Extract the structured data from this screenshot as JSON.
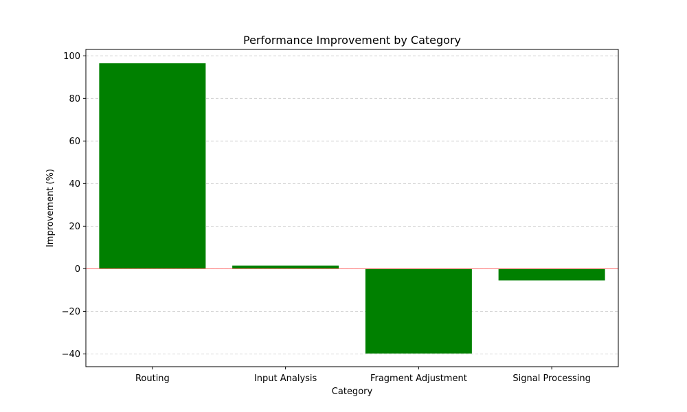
{
  "chart_data": {
    "type": "bar",
    "title": "Performance Improvement by Category",
    "xlabel": "Category",
    "ylabel": "Improvement (%)",
    "categories": [
      "Routing",
      "Input Analysis",
      "Fragment Adjustment",
      "Signal Processing"
    ],
    "values": [
      96.5,
      1.5,
      -39.8,
      -5.5
    ],
    "ylim": [
      -46,
      103
    ],
    "yticks": [
      -40,
      -20,
      0,
      20,
      40,
      60,
      80,
      100
    ],
    "ytick_labels": [
      "−40",
      "−20",
      "0",
      "20",
      "40",
      "60",
      "80",
      "100"
    ],
    "bar_color": "#008000",
    "zero_line_color": "#ff6666",
    "grid": "y"
  }
}
